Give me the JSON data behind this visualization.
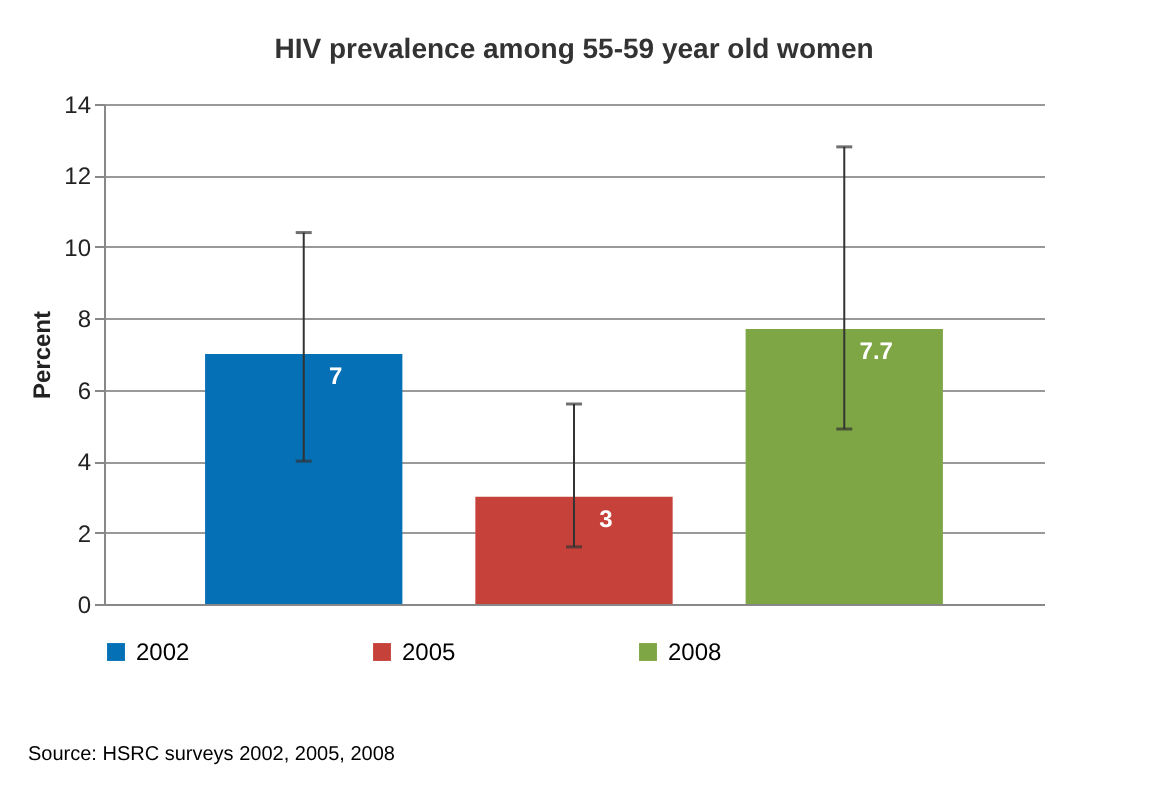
{
  "chart_data": {
    "type": "bar",
    "title": "HIV prevalence among 55-59 year old women",
    "ylabel": "Percent",
    "categories": [
      null
    ],
    "series": [
      {
        "name": "2002",
        "color": "#0570b5",
        "values": [
          7
        ],
        "errors": [
          [
            4.0,
            10.4
          ]
        ]
      },
      {
        "name": "2005",
        "color": "#c6413a",
        "values": [
          3
        ],
        "errors": [
          [
            1.6,
            5.6
          ]
        ]
      },
      {
        "name": "2008",
        "color": "#7fa645",
        "values": [
          7.7
        ],
        "errors": [
          [
            4.9,
            12.8
          ]
        ]
      }
    ],
    "ylim": [
      0,
      14
    ],
    "yticks": [
      0,
      2,
      4,
      6,
      8,
      10,
      12,
      14
    ],
    "grid": "y",
    "legend": "bottom",
    "data_labels": true,
    "tick_labels": "y",
    "annotations": [
      "Source: HSRC surveys 2002, 2005, 2008"
    ]
  }
}
